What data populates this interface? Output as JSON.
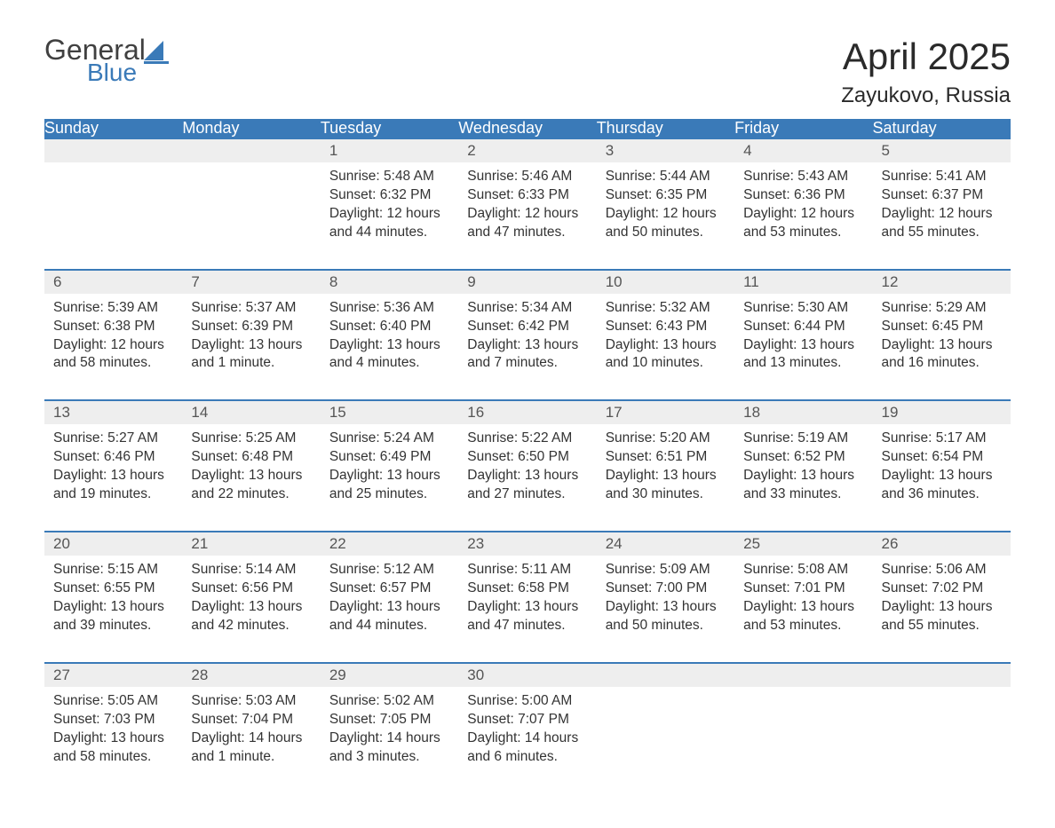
{
  "logo": {
    "line1": "General",
    "line2": "Blue",
    "icon_color": "#3a7ab8",
    "text_color": "#404040"
  },
  "title": "April 2025",
  "location": "Zayukovo, Russia",
  "colors": {
    "header_bg": "#3a7ab8",
    "header_text": "#ffffff",
    "daynum_bg": "#eeeeee",
    "daynum_text": "#555555",
    "body_text": "#333333",
    "row_border": "#3a7ab8",
    "page_bg": "#ffffff"
  },
  "weekdays": [
    "Sunday",
    "Monday",
    "Tuesday",
    "Wednesday",
    "Thursday",
    "Friday",
    "Saturday"
  ],
  "weeks": [
    [
      null,
      null,
      {
        "n": "1",
        "sunrise": "5:48 AM",
        "sunset": "6:32 PM",
        "daylight": "12 hours and 44 minutes."
      },
      {
        "n": "2",
        "sunrise": "5:46 AM",
        "sunset": "6:33 PM",
        "daylight": "12 hours and 47 minutes."
      },
      {
        "n": "3",
        "sunrise": "5:44 AM",
        "sunset": "6:35 PM",
        "daylight": "12 hours and 50 minutes."
      },
      {
        "n": "4",
        "sunrise": "5:43 AM",
        "sunset": "6:36 PM",
        "daylight": "12 hours and 53 minutes."
      },
      {
        "n": "5",
        "sunrise": "5:41 AM",
        "sunset": "6:37 PM",
        "daylight": "12 hours and 55 minutes."
      }
    ],
    [
      {
        "n": "6",
        "sunrise": "5:39 AM",
        "sunset": "6:38 PM",
        "daylight": "12 hours and 58 minutes."
      },
      {
        "n": "7",
        "sunrise": "5:37 AM",
        "sunset": "6:39 PM",
        "daylight": "13 hours and 1 minute."
      },
      {
        "n": "8",
        "sunrise": "5:36 AM",
        "sunset": "6:40 PM",
        "daylight": "13 hours and 4 minutes."
      },
      {
        "n": "9",
        "sunrise": "5:34 AM",
        "sunset": "6:42 PM",
        "daylight": "13 hours and 7 minutes."
      },
      {
        "n": "10",
        "sunrise": "5:32 AM",
        "sunset": "6:43 PM",
        "daylight": "13 hours and 10 minutes."
      },
      {
        "n": "11",
        "sunrise": "5:30 AM",
        "sunset": "6:44 PM",
        "daylight": "13 hours and 13 minutes."
      },
      {
        "n": "12",
        "sunrise": "5:29 AM",
        "sunset": "6:45 PM",
        "daylight": "13 hours and 16 minutes."
      }
    ],
    [
      {
        "n": "13",
        "sunrise": "5:27 AM",
        "sunset": "6:46 PM",
        "daylight": "13 hours and 19 minutes."
      },
      {
        "n": "14",
        "sunrise": "5:25 AM",
        "sunset": "6:48 PM",
        "daylight": "13 hours and 22 minutes."
      },
      {
        "n": "15",
        "sunrise": "5:24 AM",
        "sunset": "6:49 PM",
        "daylight": "13 hours and 25 minutes."
      },
      {
        "n": "16",
        "sunrise": "5:22 AM",
        "sunset": "6:50 PM",
        "daylight": "13 hours and 27 minutes."
      },
      {
        "n": "17",
        "sunrise": "5:20 AM",
        "sunset": "6:51 PM",
        "daylight": "13 hours and 30 minutes."
      },
      {
        "n": "18",
        "sunrise": "5:19 AM",
        "sunset": "6:52 PM",
        "daylight": "13 hours and 33 minutes."
      },
      {
        "n": "19",
        "sunrise": "5:17 AM",
        "sunset": "6:54 PM",
        "daylight": "13 hours and 36 minutes."
      }
    ],
    [
      {
        "n": "20",
        "sunrise": "5:15 AM",
        "sunset": "6:55 PM",
        "daylight": "13 hours and 39 minutes."
      },
      {
        "n": "21",
        "sunrise": "5:14 AM",
        "sunset": "6:56 PM",
        "daylight": "13 hours and 42 minutes."
      },
      {
        "n": "22",
        "sunrise": "5:12 AM",
        "sunset": "6:57 PM",
        "daylight": "13 hours and 44 minutes."
      },
      {
        "n": "23",
        "sunrise": "5:11 AM",
        "sunset": "6:58 PM",
        "daylight": "13 hours and 47 minutes."
      },
      {
        "n": "24",
        "sunrise": "5:09 AM",
        "sunset": "7:00 PM",
        "daylight": "13 hours and 50 minutes."
      },
      {
        "n": "25",
        "sunrise": "5:08 AM",
        "sunset": "7:01 PM",
        "daylight": "13 hours and 53 minutes."
      },
      {
        "n": "26",
        "sunrise": "5:06 AM",
        "sunset": "7:02 PM",
        "daylight": "13 hours and 55 minutes."
      }
    ],
    [
      {
        "n": "27",
        "sunrise": "5:05 AM",
        "sunset": "7:03 PM",
        "daylight": "13 hours and 58 minutes."
      },
      {
        "n": "28",
        "sunrise": "5:03 AM",
        "sunset": "7:04 PM",
        "daylight": "14 hours and 1 minute."
      },
      {
        "n": "29",
        "sunrise": "5:02 AM",
        "sunset": "7:05 PM",
        "daylight": "14 hours and 3 minutes."
      },
      {
        "n": "30",
        "sunrise": "5:00 AM",
        "sunset": "7:07 PM",
        "daylight": "14 hours and 6 minutes."
      },
      null,
      null,
      null
    ]
  ],
  "labels": {
    "sunrise": "Sunrise: ",
    "sunset": "Sunset: ",
    "daylight": "Daylight: "
  }
}
